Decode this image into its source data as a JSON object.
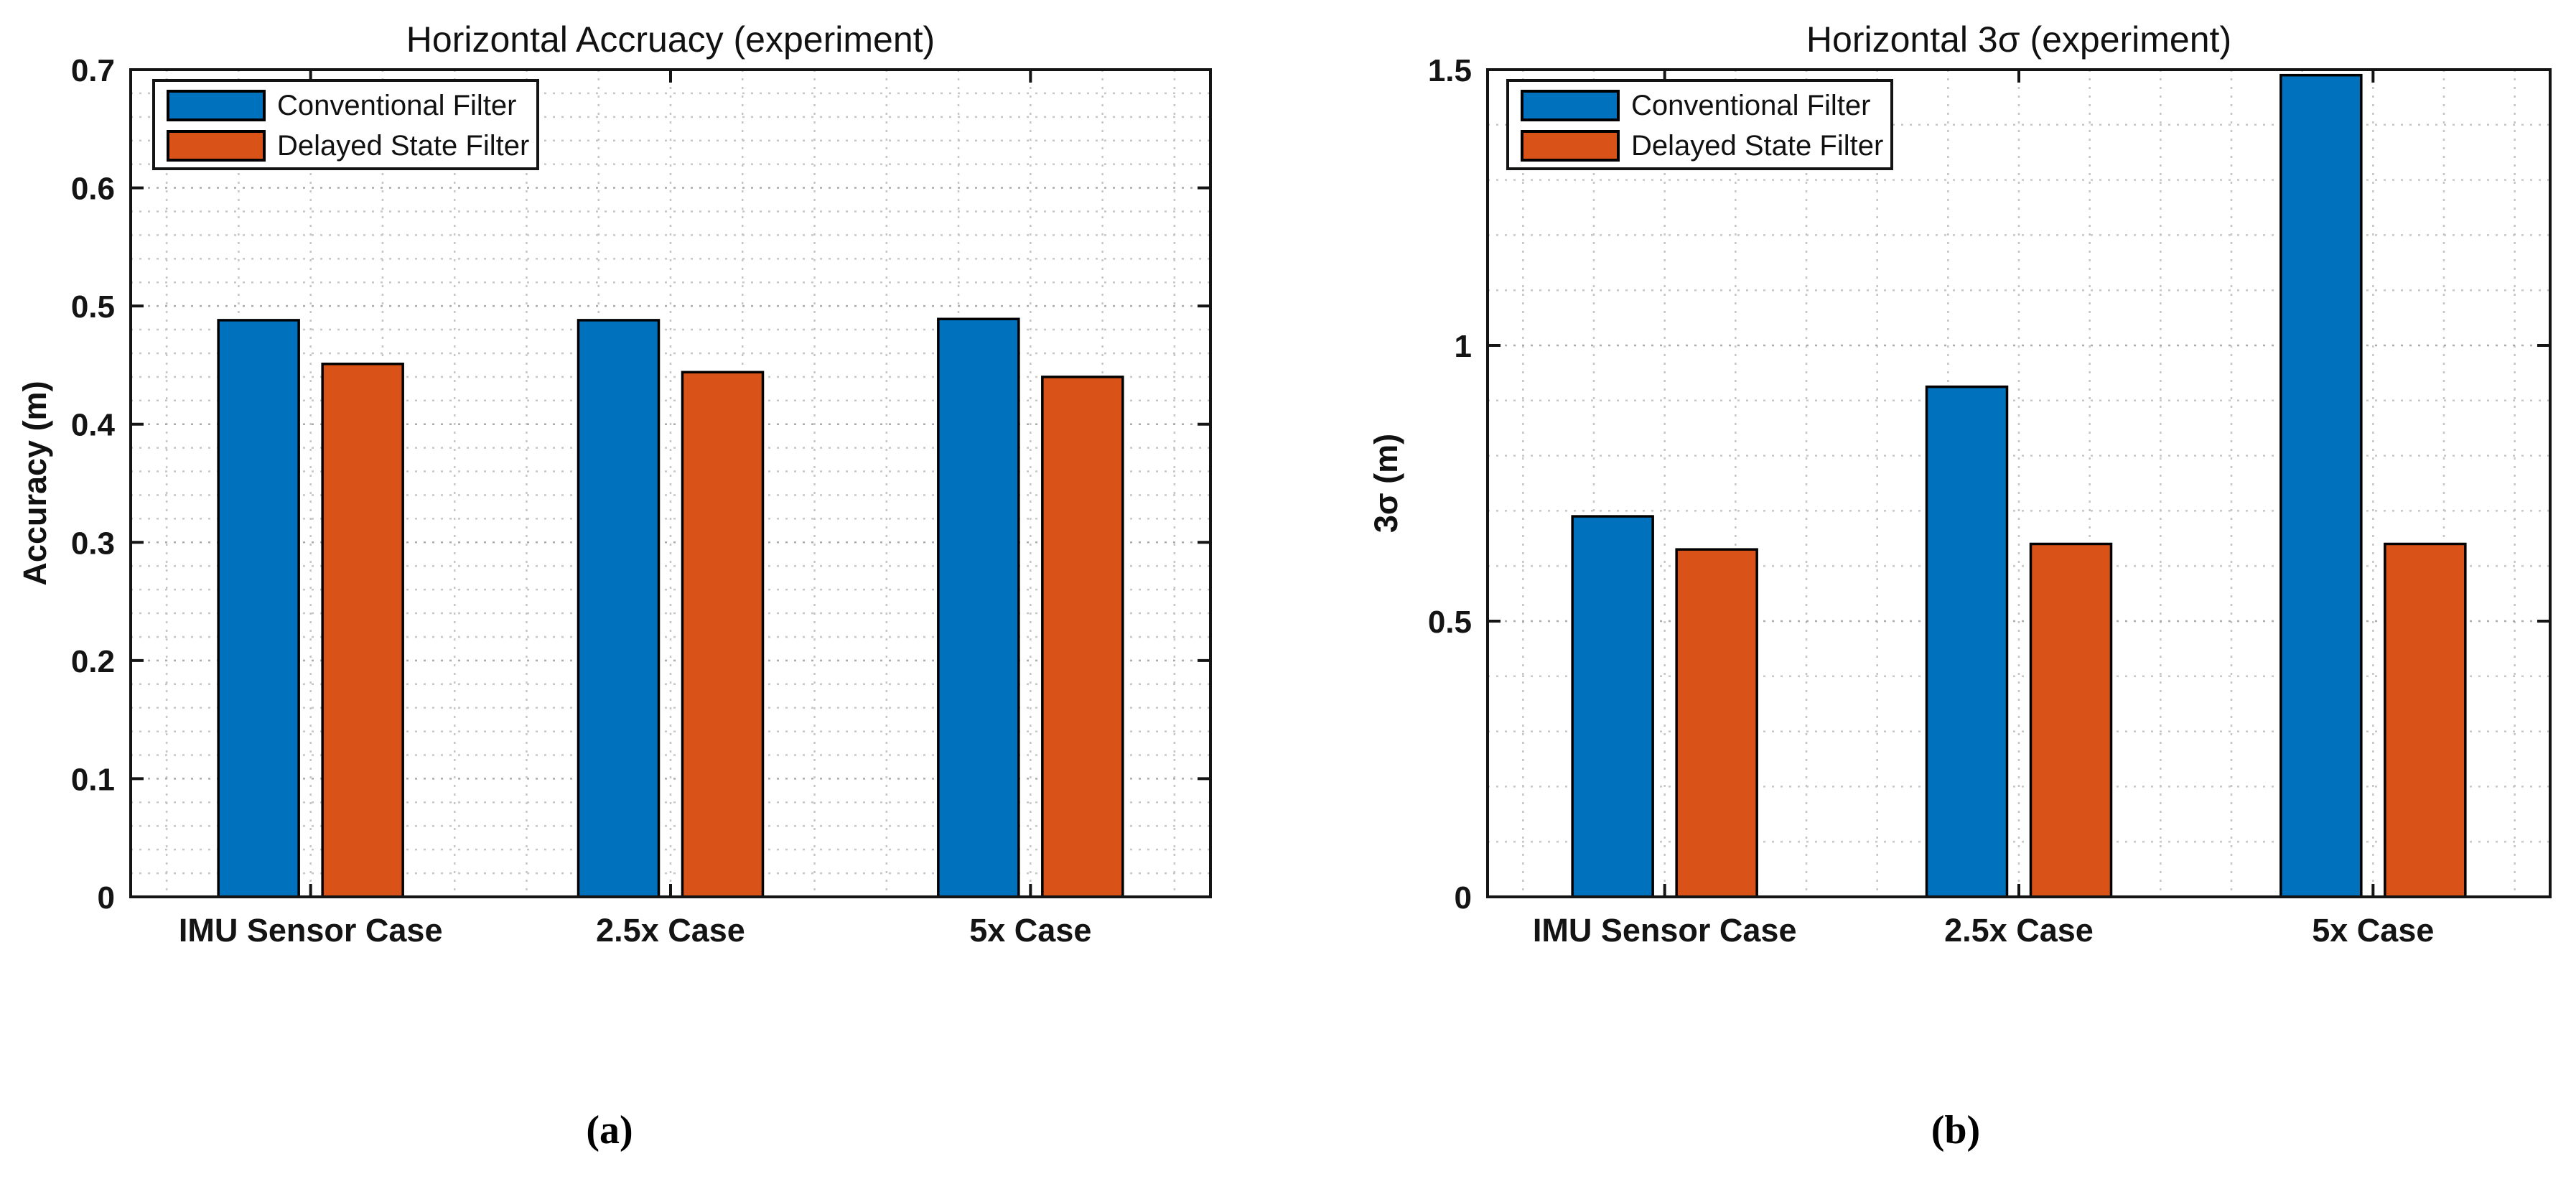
{
  "figure": {
    "background": "#ffffff",
    "captions": [
      {
        "label": "(a)"
      },
      {
        "label": "(b)"
      }
    ]
  },
  "legend": {
    "items": [
      {
        "label": "Conventional Filter",
        "color": "#0072BD"
      },
      {
        "label": "Delayed State Filter",
        "color": "#D95319"
      }
    ]
  },
  "colors": {
    "conventional_blue": "#0072BD",
    "delayed_orange": "#D95319",
    "axis": "#141414",
    "major_grid": "#ababab",
    "minor_grid": "#c6c6c6"
  },
  "chart_data": [
    {
      "type": "bar",
      "title": "Horizontal Accruacy (experiment)",
      "xlabel": "",
      "ylabel": "Accuracy (m)",
      "categories": [
        "IMU Sensor Case",
        "2.5x Case",
        "5x Case"
      ],
      "series": [
        {
          "name": "Conventional Filter",
          "color": "#0072BD",
          "values": [
            0.488,
            0.488,
            0.489
          ]
        },
        {
          "name": "Delayed State Filter",
          "color": "#D95319",
          "values": [
            0.451,
            0.444,
            0.44
          ]
        }
      ],
      "ylim": [
        0,
        0.7
      ],
      "yticks": [
        0,
        0.1,
        0.2,
        0.3,
        0.4,
        0.5,
        0.6,
        0.7
      ],
      "ytick_labels": [
        "0",
        "0.1",
        "0.2",
        "0.3",
        "0.4",
        "0.5",
        "0.6",
        "0.7"
      ],
      "minor_y_step": 0.02,
      "grid": true,
      "minor_grid": true,
      "legend_position": "top-left"
    },
    {
      "type": "bar",
      "title": "Horizontal 3σ (experiment)",
      "xlabel": "",
      "ylabel": "3σ (m)",
      "categories": [
        "IMU Sensor Case",
        "2.5x Case",
        "5x Case"
      ],
      "series": [
        {
          "name": "Conventional Filter",
          "color": "#0072BD",
          "values": [
            0.69,
            0.925,
            1.49
          ]
        },
        {
          "name": "Delayed State Filter",
          "color": "#D95319",
          "values": [
            0.63,
            0.64,
            0.64
          ]
        }
      ],
      "ylim": [
        0,
        1.5
      ],
      "yticks": [
        0,
        0.5,
        1,
        1.5
      ],
      "ytick_labels": [
        "0",
        "0.5",
        "1",
        "1.5"
      ],
      "minor_y_step": 0.1,
      "grid": true,
      "minor_grid": true,
      "legend_position": "top-left"
    }
  ]
}
